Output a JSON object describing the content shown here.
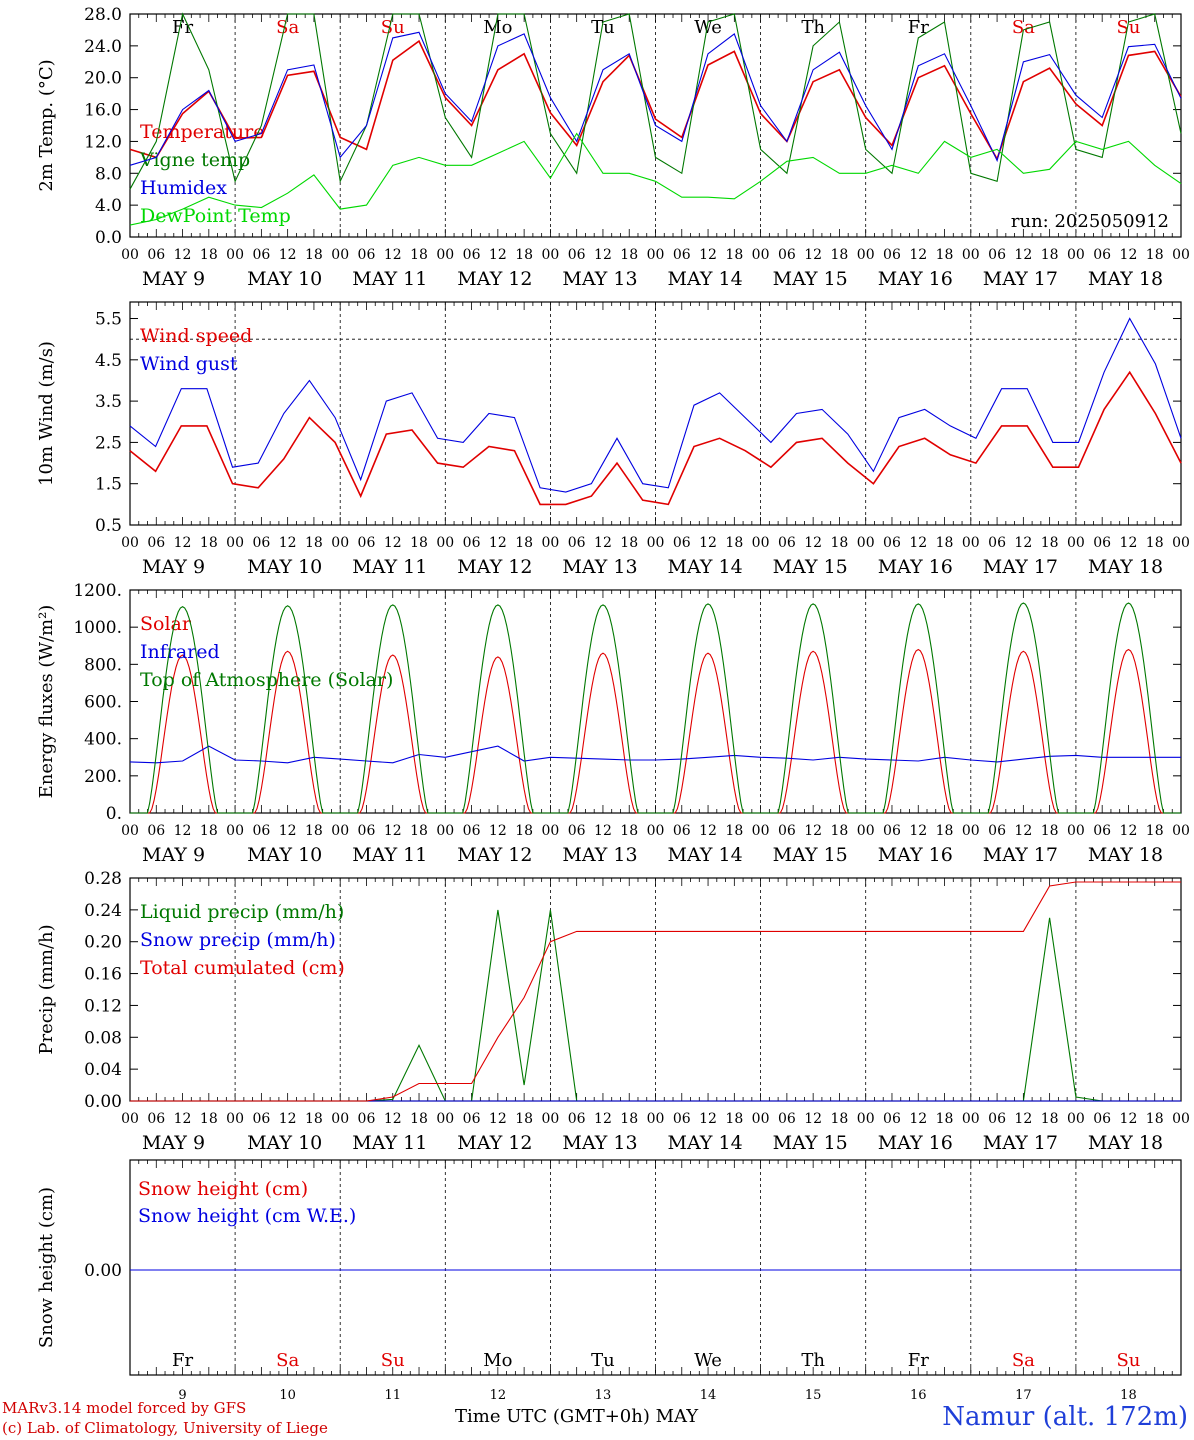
{
  "axis": {
    "hour_labels": [
      "00",
      "06",
      "12",
      "18"
    ],
    "final_hour_label": "00",
    "date_labels": [
      "MAY  9",
      "MAY 10",
      "MAY 11",
      "MAY 12",
      "MAY 13",
      "MAY 14",
      "MAY 15",
      "MAY 16",
      "MAY 17",
      "MAY 18"
    ],
    "weekdays": [
      "Fr",
      "Sa",
      "Su",
      "Mo",
      "Tu",
      "We",
      "Th",
      "Fr",
      "Sa",
      "Su"
    ],
    "day_numbers": [
      "9",
      "10",
      "11",
      "12",
      "13",
      "14",
      "15",
      "16",
      "17",
      "18"
    ],
    "weekend_flags": [
      false,
      true,
      true,
      false,
      false,
      false,
      false,
      false,
      true,
      true
    ]
  },
  "colors": {
    "red": "#e00000",
    "blue": "#0000e0",
    "green": "#007800",
    "lightgreen": "#00d800",
    "weekend": "#e00000",
    "weekday": "#000000"
  },
  "footer": {
    "line1": "MARv3.14 model forced by GFS",
    "line2": "(c) Lab. of Climatology, University of Liege",
    "xlabel": "Time UTC (GMT+0h) MAY",
    "station": "Namur (alt. 172m)"
  },
  "chart_data": [
    {
      "type": "line",
      "ylabel": "2m Temp. (°C)",
      "ylim": [
        0,
        28
      ],
      "ytick_labels": [
        "0.0",
        "4.0",
        "8.0",
        "12.0",
        "16.0",
        "20.0",
        "24.0",
        "28.0"
      ],
      "annotation": "run: 2025050912",
      "x_step_hours": 6,
      "series": [
        {
          "name": "Temperature",
          "color": "#e00000",
          "values": [
            11,
            10,
            15.5,
            18.3,
            12.4,
            12.5,
            20.3,
            20.8,
            12.5,
            11,
            22.2,
            24.6,
            17.5,
            14,
            21,
            23,
            15.6,
            11.5,
            19.5,
            22.8,
            14.8,
            12.5,
            21.6,
            23.3,
            15.5,
            12,
            19.5,
            21,
            15,
            11.5,
            20,
            21.5,
            15.5,
            9.8,
            19.5,
            21.2,
            16.7,
            14,
            22.8,
            23.3,
            17.6
          ]
        },
        {
          "name": "Vigne temp",
          "color": "#007800",
          "values": [
            6,
            12,
            28,
            21,
            7,
            14,
            28,
            28,
            7,
            14,
            28,
            28,
            15,
            10,
            28,
            28,
            13,
            8,
            27,
            28,
            10,
            8,
            27,
            28,
            11,
            8,
            24,
            27,
            11,
            8,
            25,
            27,
            8,
            7,
            26,
            27,
            11,
            10,
            27,
            28,
            13
          ]
        },
        {
          "name": "Humidex",
          "color": "#0000e0",
          "values": [
            9,
            10,
            16,
            18.4,
            12,
            13,
            21,
            21.6,
            10,
            14,
            25,
            25.7,
            18,
            14.5,
            24,
            25.5,
            17.5,
            12,
            21,
            23,
            14,
            12,
            23,
            25.5,
            16.5,
            12,
            21,
            23.2,
            16.5,
            11,
            21.5,
            23,
            16.5,
            9.6,
            22,
            22.9,
            17.8,
            15,
            23.9,
            24.2,
            17.4
          ]
        },
        {
          "name": "DewPoint Temp",
          "color": "#00d800",
          "values": [
            1.5,
            2.2,
            3.5,
            5,
            4,
            3.7,
            5.5,
            7.8,
            3.5,
            4,
            9,
            10,
            9,
            9,
            10.5,
            12,
            7.4,
            13,
            8,
            8,
            7,
            5,
            5,
            4.8,
            7,
            9.5,
            10,
            8,
            8,
            9,
            8,
            12,
            10,
            11,
            8,
            8.5,
            12,
            11,
            12,
            9,
            6.7
          ]
        }
      ]
    },
    {
      "type": "line",
      "ylabel": "10m Wind (m/s)",
      "ylim": [
        0.5,
        5.9
      ],
      "ytick_labels": [
        "0.5",
        "1.5",
        "2.5",
        "3.5",
        "4.5",
        "5.5"
      ],
      "reference_line": 5.0,
      "x_step_hours": 6,
      "series": [
        {
          "name": "Wind speed",
          "color": "#e00000",
          "values": [
            2.3,
            1.8,
            2.9,
            2.9,
            1.5,
            1.4,
            2.1,
            3.1,
            2.5,
            1.2,
            2.7,
            2.8,
            2.0,
            1.9,
            2.4,
            2.3,
            1.0,
            1.0,
            1.2,
            2.0,
            1.1,
            1.0,
            2.4,
            2.6,
            2.3,
            1.9,
            2.5,
            2.6,
            2.0,
            1.5,
            2.4,
            2.6,
            2.2,
            2.0,
            2.9,
            2.9,
            1.9,
            1.9,
            3.3,
            4.2,
            3.2,
            2.0
          ]
        },
        {
          "name": "Wind gust",
          "color": "#0000e0",
          "values": [
            2.9,
            2.4,
            3.8,
            3.8,
            1.9,
            2.0,
            3.2,
            4.0,
            3.1,
            1.6,
            3.5,
            3.7,
            2.6,
            2.5,
            3.2,
            3.1,
            1.4,
            1.3,
            1.5,
            2.6,
            1.5,
            1.4,
            3.4,
            3.7,
            3.1,
            2.5,
            3.2,
            3.3,
            2.7,
            1.8,
            3.1,
            3.3,
            2.9,
            2.6,
            3.8,
            3.8,
            2.5,
            2.5,
            4.2,
            5.5,
            4.4,
            2.6
          ]
        }
      ]
    },
    {
      "type": "line",
      "ylabel": "Energy fluxes (W/m²)",
      "ylim": [
        0,
        1200
      ],
      "ytick_labels": [
        "0.",
        "200.",
        "400.",
        "600.",
        "800.",
        "1000.",
        "1200."
      ],
      "x_step_hours": 6,
      "series": [
        {
          "name": "Solar",
          "color": "#e00000",
          "peak_values": [
            850,
            870,
            850,
            840,
            860,
            860,
            870,
            880,
            870,
            880
          ]
        },
        {
          "name": "Infrared",
          "color": "#0000e0",
          "values": [
            275,
            270,
            280,
            360,
            285,
            280,
            270,
            300,
            290,
            280,
            270,
            315,
            300,
            330,
            360,
            280,
            300,
            295,
            290,
            285,
            285,
            290,
            300,
            310,
            300,
            295,
            285,
            300,
            290,
            285,
            280,
            300,
            285,
            275,
            290,
            305,
            310,
            300,
            300,
            300,
            300
          ]
        },
        {
          "name": "Top of Atmosphere (Solar)",
          "color": "#007800",
          "peak_values": [
            1110,
            1115,
            1120,
            1120,
            1120,
            1125,
            1125,
            1125,
            1130,
            1130
          ]
        }
      ]
    },
    {
      "type": "line",
      "ylabel": "Precip (mm/h)",
      "ylim": [
        0,
        0.28
      ],
      "ytick_labels": [
        "0.00",
        "0.04",
        "0.08",
        "0.12",
        "0.16",
        "0.20",
        "0.24",
        "0.28"
      ],
      "x_step_hours": 6,
      "series": [
        {
          "name": "Liquid precip (mm/h)",
          "color": "#007800",
          "values": [
            0,
            0,
            0,
            0,
            0,
            0,
            0,
            0,
            0,
            0,
            0.002,
            0.07,
            0,
            0,
            0.24,
            0.02,
            0.24,
            0,
            0,
            0,
            0,
            0,
            0,
            0,
            0,
            0,
            0,
            0,
            0,
            0,
            0,
            0,
            0,
            0,
            0,
            0.23,
            0.005,
            0,
            0,
            0,
            0
          ]
        },
        {
          "name": "Snow precip (mm/h)",
          "color": "#0000e0",
          "values": [
            0,
            0,
            0,
            0,
            0,
            0,
            0,
            0,
            0,
            0,
            0,
            0,
            0,
            0,
            0,
            0,
            0,
            0,
            0,
            0,
            0,
            0,
            0,
            0,
            0,
            0,
            0,
            0,
            0,
            0,
            0,
            0,
            0,
            0,
            0,
            0,
            0,
            0,
            0,
            0,
            0
          ]
        },
        {
          "name": "Total cumulated (cm)",
          "color": "#e00000",
          "values": [
            0,
            0,
            0,
            0,
            0,
            0,
            0,
            0,
            0,
            0,
            0.005,
            0.022,
            0.022,
            0.022,
            0.08,
            0.13,
            0.2,
            0.213,
            0.213,
            0.213,
            0.213,
            0.213,
            0.213,
            0.213,
            0.213,
            0.213,
            0.213,
            0.213,
            0.213,
            0.213,
            0.213,
            0.213,
            0.213,
            0.213,
            0.213,
            0.27,
            0.275,
            0.275,
            0.275,
            0.275,
            0.275
          ]
        }
      ]
    },
    {
      "type": "line",
      "ylabel": "Snow height (cm)",
      "ytick_labels": [
        "0.00"
      ],
      "series": [
        {
          "name": "Snow height (cm)",
          "color": "#e00000",
          "values": [
            0,
            0
          ]
        },
        {
          "name": "Snow height (cm W.E.)",
          "color": "#0000e0",
          "values": [
            0,
            0
          ]
        }
      ]
    }
  ]
}
